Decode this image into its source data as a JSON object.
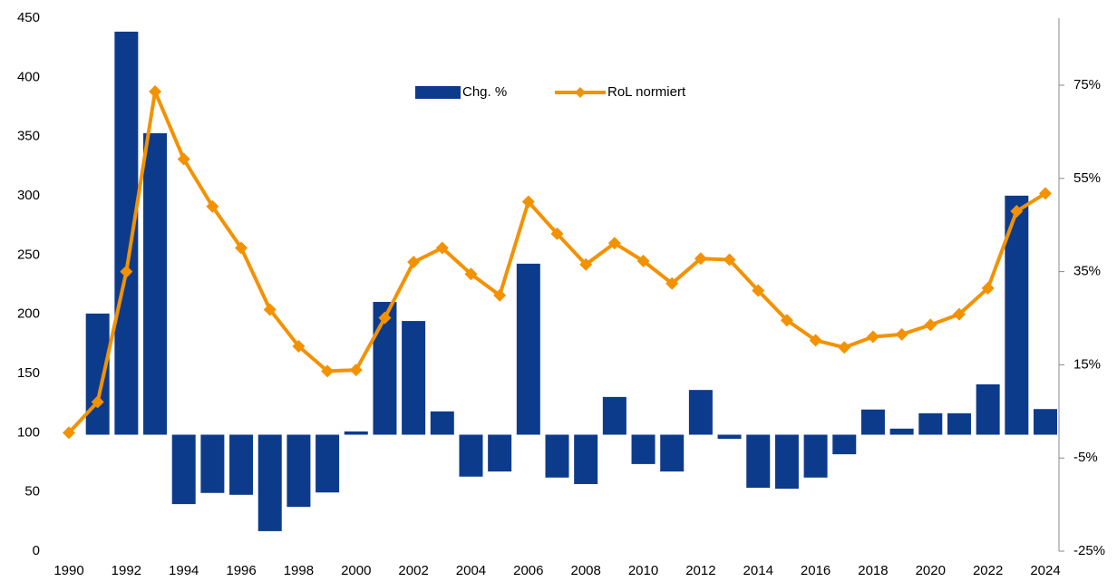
{
  "chart_data": {
    "type": "combo",
    "categories": [
      "1990",
      null,
      "1992",
      null,
      "1994",
      null,
      "1996",
      null,
      "1998",
      null,
      "2000",
      null,
      "2002",
      null,
      "2004",
      null,
      "2006",
      null,
      "2008",
      null,
      "2010",
      null,
      "2012",
      null,
      "2014",
      null,
      "2016",
      null,
      "2018",
      null,
      "2020",
      null,
      "2022",
      null,
      "2024"
    ],
    "series": [
      {
        "name": "Chg. %",
        "type": "bar",
        "axis": "y2",
        "color": "#0d3b8c",
        "values": [
          null,
          26.0,
          86.5,
          64.7,
          -14.9,
          -12.5,
          -12.9,
          -20.7,
          -15.5,
          -12.4,
          0.7,
          28.5,
          24.4,
          5.0,
          -9.0,
          -7.9,
          36.7,
          -9.2,
          -10.6,
          8.1,
          -6.3,
          -7.9,
          9.6,
          -0.9,
          -11.4,
          -11.6,
          -9.2,
          -4.2,
          5.4,
          1.3,
          4.6,
          4.6,
          10.8,
          51.3,
          5.5
        ]
      },
      {
        "name": "RoL normiert",
        "type": "line",
        "color": "#f39200",
        "values": [
          100,
          126,
          236,
          388,
          331,
          291,
          256,
          204,
          173,
          152,
          153,
          197,
          244,
          256,
          234,
          216,
          295,
          268,
          242,
          260,
          245,
          226,
          247,
          246,
          220,
          195,
          178,
          172,
          181,
          183,
          191,
          200,
          222,
          287,
          302
        ]
      }
    ],
    "ylim": [
      0,
      450
    ],
    "yticks": [
      0,
      50,
      100,
      150,
      200,
      250,
      300,
      350,
      400,
      450
    ],
    "y2lim": [
      -25,
      89.4
    ],
    "y2ticks": [
      {
        "value": -25,
        "label": "-25%"
      },
      {
        "value": -5,
        "label": "-5%"
      },
      {
        "value": 15,
        "label": "15%"
      },
      {
        "value": 35,
        "label": "35%"
      },
      {
        "value": 55,
        "label": "55%"
      },
      {
        "value": 75,
        "label": "75%"
      }
    ],
    "legend": "top"
  }
}
